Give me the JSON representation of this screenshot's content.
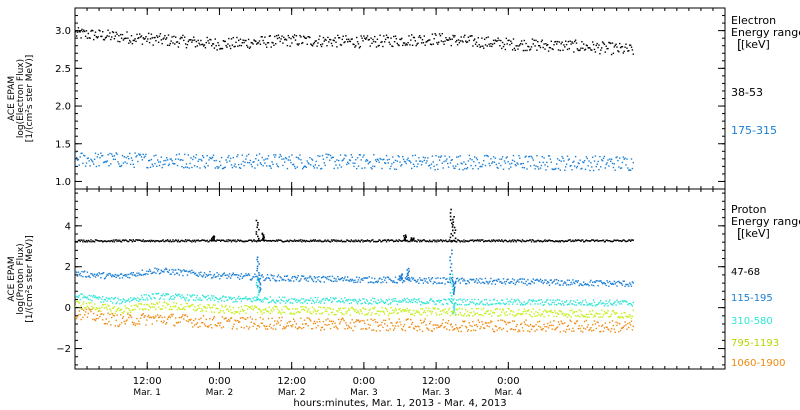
{
  "chart_data": [
    {
      "type": "scatter",
      "ylabel_lines": [
        "ACE EPAM",
        "log(Electron Flux)",
        "[1/(cm²s ster MeV)]"
      ],
      "ylim": [
        0.9,
        3.3
      ],
      "yticks": [
        1.0,
        1.5,
        2.0,
        2.5,
        3.0
      ],
      "ytick_labels": [
        "1.0",
        "1.5",
        "2.0",
        "2.5",
        "3.0"
      ],
      "legend_title_lines": [
        "Electron",
        "Energy ranges",
        "[keV]"
      ],
      "series": [
        {
          "name": "38-53",
          "color": "#000000",
          "trend": [
            [
              0.0,
              2.97
            ],
            [
              0.5,
              2.9
            ],
            [
              1.0,
              2.83
            ],
            [
              1.5,
              2.88
            ],
            [
              2.0,
              2.86
            ],
            [
              2.5,
              2.9
            ],
            [
              3.0,
              2.83
            ],
            [
              3.5,
              2.8
            ],
            [
              3.86,
              2.75
            ]
          ],
          "noise": 0.08
        },
        {
          "name": "175-315",
          "color": "#1a7fd4",
          "trend": [
            [
              0.0,
              1.3
            ],
            [
              1.0,
              1.28
            ],
            [
              2.0,
              1.27
            ],
            [
              3.0,
              1.26
            ],
            [
              3.86,
              1.25
            ]
          ],
          "noise": 0.1
        }
      ]
    },
    {
      "type": "scatter",
      "ylabel_lines": [
        "ACE EPAM",
        "log(Proton Flux)",
        "[1/(cm²s ster MeV)]"
      ],
      "ylim": [
        -3.0,
        5.8
      ],
      "yticks": [
        -2,
        0,
        2,
        4
      ],
      "ytick_labels": [
        "−2",
        "0",
        "2",
        "4"
      ],
      "legend_title_lines": [
        "Proton",
        "Energy ranges",
        "[keV]"
      ],
      "series": [
        {
          "name": "47-68",
          "color": "#000000",
          "trend": [
            [
              0.0,
              3.3
            ],
            [
              1.0,
              3.3
            ],
            [
              2.0,
              3.3
            ],
            [
              3.0,
              3.3
            ],
            [
              3.86,
              3.3
            ]
          ],
          "noise": 0.05,
          "spikes": [
            [
              0.95,
              3.55
            ],
            [
              1.26,
              4.4
            ],
            [
              1.3,
              3.7
            ],
            [
              2.28,
              3.6
            ],
            [
              2.33,
              3.45
            ],
            [
              2.6,
              5.0
            ],
            [
              2.62,
              4.6
            ]
          ]
        },
        {
          "name": "115-195",
          "color": "#1a7fd4",
          "trend": [
            [
              0.0,
              1.7
            ],
            [
              0.3,
              1.55
            ],
            [
              0.55,
              1.85
            ],
            [
              1.0,
              1.6
            ],
            [
              1.5,
              1.45
            ],
            [
              2.0,
              1.4
            ],
            [
              2.5,
              1.35
            ],
            [
              3.0,
              1.3
            ],
            [
              3.86,
              1.2
            ]
          ],
          "noise": 0.15,
          "spikes": [
            [
              1.26,
              2.6
            ],
            [
              1.27,
              0.8
            ],
            [
              2.25,
              1.7
            ],
            [
              2.3,
              2.0
            ],
            [
              2.6,
              3.0
            ],
            [
              2.62,
              0.7
            ]
          ]
        },
        {
          "name": "310-580",
          "color": "#2ee6d6",
          "trend": [
            [
              0.0,
              0.6
            ],
            [
              0.3,
              0.35
            ],
            [
              0.55,
              0.6
            ],
            [
              1.0,
              0.45
            ],
            [
              2.0,
              0.35
            ],
            [
              3.0,
              0.3
            ],
            [
              3.86,
              0.25
            ]
          ],
          "noise": 0.15,
          "spikes": [
            [
              1.26,
              1.6
            ],
            [
              2.6,
              1.8
            ],
            [
              2.62,
              -0.3
            ]
          ]
        },
        {
          "name": "795-1193",
          "color": "#c4ef1a",
          "trend": [
            [
              0.0,
              0.2
            ],
            [
              0.3,
              -0.1
            ],
            [
              0.55,
              0.15
            ],
            [
              1.0,
              -0.05
            ],
            [
              2.0,
              -0.15
            ],
            [
              3.0,
              -0.2
            ],
            [
              3.86,
              -0.3
            ]
          ],
          "noise": 0.2
        },
        {
          "name": "1060-1900",
          "color": "#f08a10",
          "trend": [
            [
              0.0,
              -0.2
            ],
            [
              0.3,
              -0.6
            ],
            [
              0.55,
              -0.5
            ],
            [
              1.0,
              -0.7
            ],
            [
              2.0,
              -0.8
            ],
            [
              3.0,
              -0.85
            ],
            [
              3.86,
              -0.9
            ]
          ],
          "noise": 0.3
        }
      ]
    }
  ],
  "x_axis": {
    "xlim": [
      0.0,
      4.5
    ],
    "ticks": [
      {
        "x": 0.5,
        "time": "12:00",
        "date": "Mar. 1"
      },
      {
        "x": 1.0,
        "time": "0:00",
        "date": "Mar. 2"
      },
      {
        "x": 1.5,
        "time": "12:00",
        "date": "Mar. 2"
      },
      {
        "x": 2.0,
        "time": "0:00",
        "date": "Mar. 3"
      },
      {
        "x": 2.5,
        "time": "12:00",
        "date": "Mar. 3"
      },
      {
        "x": 3.0,
        "time": "0:00",
        "date": "Mar. 4"
      }
    ],
    "title": "hours:minutes, Mar.  1, 2013 - Mar.  4, 2013"
  }
}
